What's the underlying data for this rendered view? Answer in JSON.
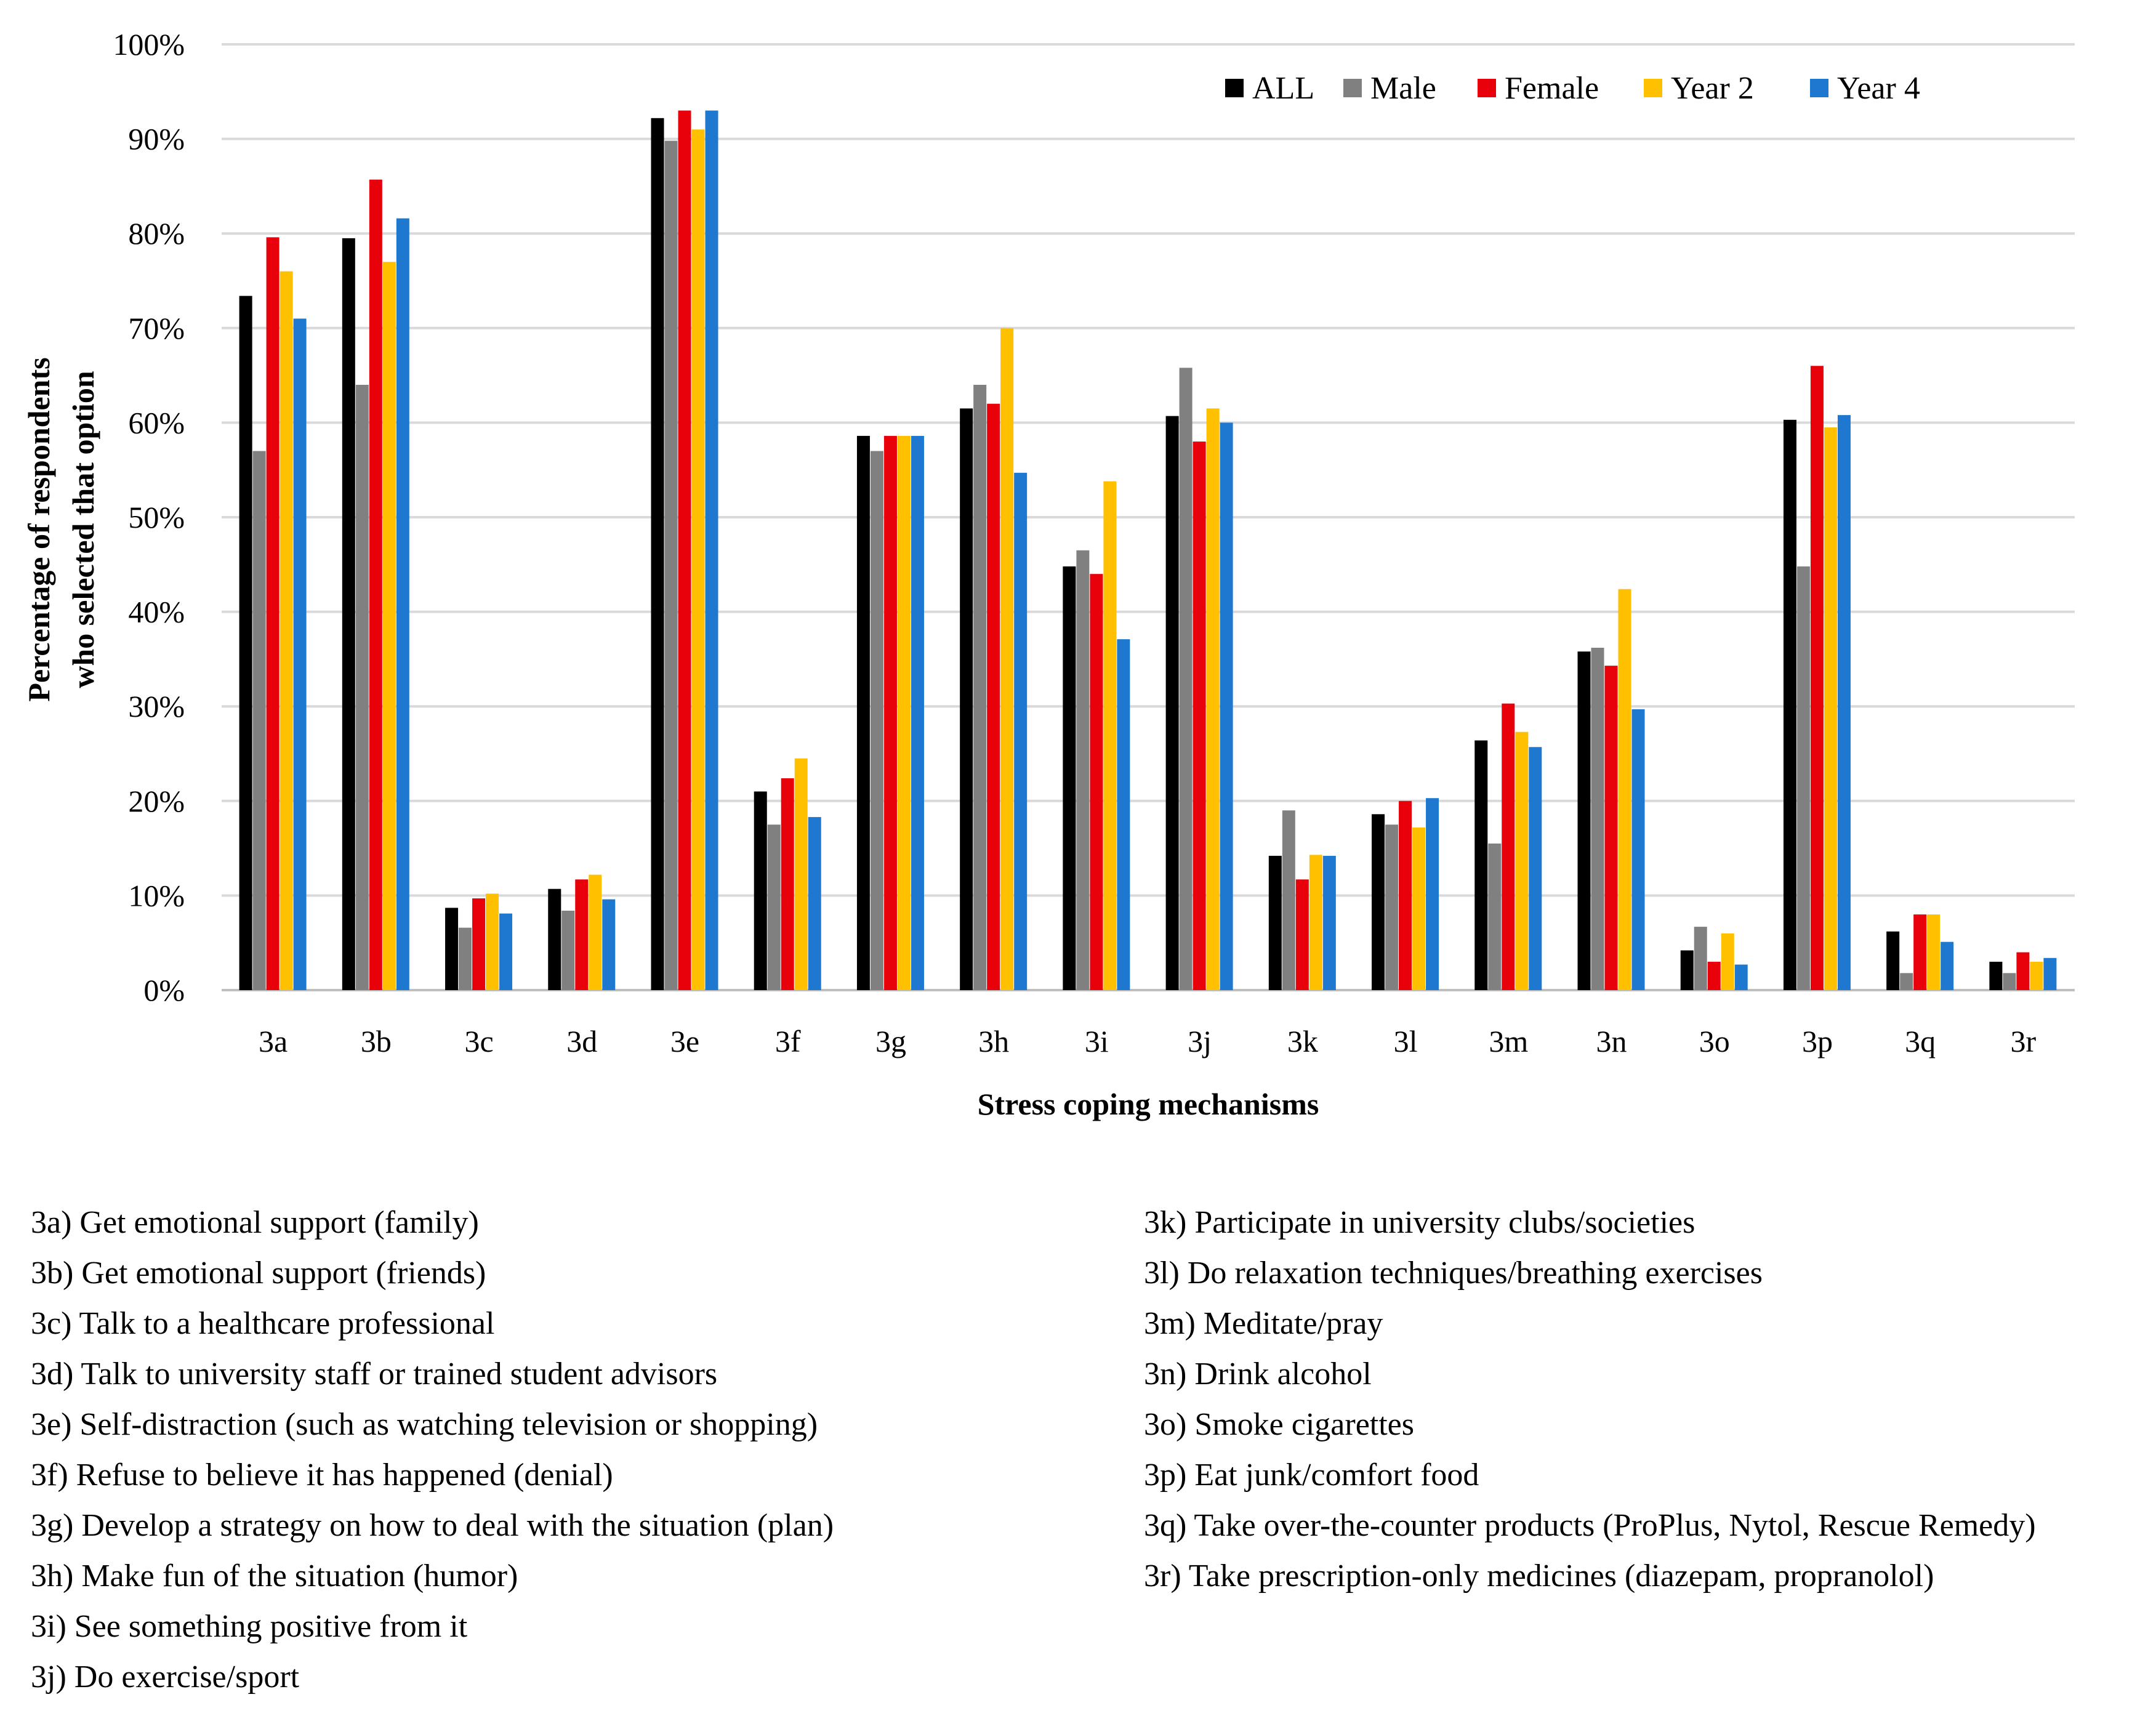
{
  "chart_data": {
    "type": "bar",
    "title": "",
    "xlabel": "Stress coping mechanisms",
    "ylabel_lines": [
      "Percentage of respondents",
      "who selected that option"
    ],
    "ylim": [
      0,
      100
    ],
    "yticks": [
      "0%",
      "10%",
      "20%",
      "30%",
      "40%",
      "50%",
      "60%",
      "70%",
      "80%",
      "90%",
      "100%"
    ],
    "legend_position": "top-right",
    "categories": [
      "3a",
      "3b",
      "3c",
      "3d",
      "3e",
      "3f",
      "3g",
      "3h",
      "3i",
      "3j",
      "3k",
      "3l",
      "3m",
      "3n",
      "3o",
      "3p",
      "3q",
      "3r"
    ],
    "series": [
      {
        "name": "ALL",
        "color": "#000000",
        "values": [
          73.4,
          79.5,
          8.7,
          10.7,
          92.2,
          21.0,
          58.6,
          61.5,
          44.8,
          60.7,
          14.2,
          18.6,
          26.4,
          35.8,
          4.2,
          60.3,
          6.2,
          3.0
        ]
      },
      {
        "name": "Male",
        "color": "#808080",
        "values": [
          57.0,
          64.0,
          6.6,
          8.4,
          89.8,
          17.5,
          57.0,
          64.0,
          46.5,
          65.8,
          19.0,
          17.5,
          15.5,
          36.2,
          6.7,
          44.8,
          1.8,
          1.8
        ]
      },
      {
        "name": "Female",
        "color": "#E8000B",
        "values": [
          79.6,
          85.7,
          9.7,
          11.7,
          93.0,
          22.4,
          58.6,
          62.0,
          44.0,
          58.0,
          11.7,
          20.0,
          30.3,
          34.3,
          3.0,
          66.0,
          8.0,
          4.0
        ]
      },
      {
        "name": "Year 2",
        "color": "#FFC000",
        "values": [
          76.0,
          77.0,
          10.2,
          12.2,
          91.0,
          24.5,
          58.6,
          70.0,
          53.8,
          61.5,
          14.3,
          17.2,
          27.3,
          42.4,
          6.0,
          59.5,
          8.0,
          3.0
        ]
      },
      {
        "name": "Year 4",
        "color": "#1F78D0",
        "values": [
          71.0,
          81.6,
          8.1,
          9.6,
          93.0,
          18.3,
          58.6,
          54.7,
          37.1,
          60.0,
          14.2,
          20.3,
          25.7,
          29.7,
          2.7,
          60.8,
          5.1,
          3.4
        ]
      }
    ]
  },
  "notes": {
    "left": [
      "3a) Get emotional support (family)",
      "3b) Get emotional support (friends)",
      "3c) Talk to a healthcare professional",
      "3d) Talk to university staff or trained student advisors",
      "3e) Self-distraction (such as watching television or shopping)",
      "3f) Refuse to believe it has happened (denial)",
      "3g) Develop a strategy on how to deal with the situation (plan)",
      "3h) Make fun of the situation (humor)",
      "3i) See something positive from it",
      "3j) Do exercise/sport"
    ],
    "right": [
      "3k) Participate in university clubs/societies",
      "3l) Do relaxation techniques/breathing exercises",
      "3m) Meditate/pray",
      "3n) Drink alcohol",
      "3o) Smoke cigarettes",
      "3p) Eat junk/comfort food",
      "3q) Take over-the-counter products (ProPlus, Nytol, Rescue Remedy)",
      "3r) Take prescription-only medicines (diazepam, propranolol)"
    ]
  }
}
